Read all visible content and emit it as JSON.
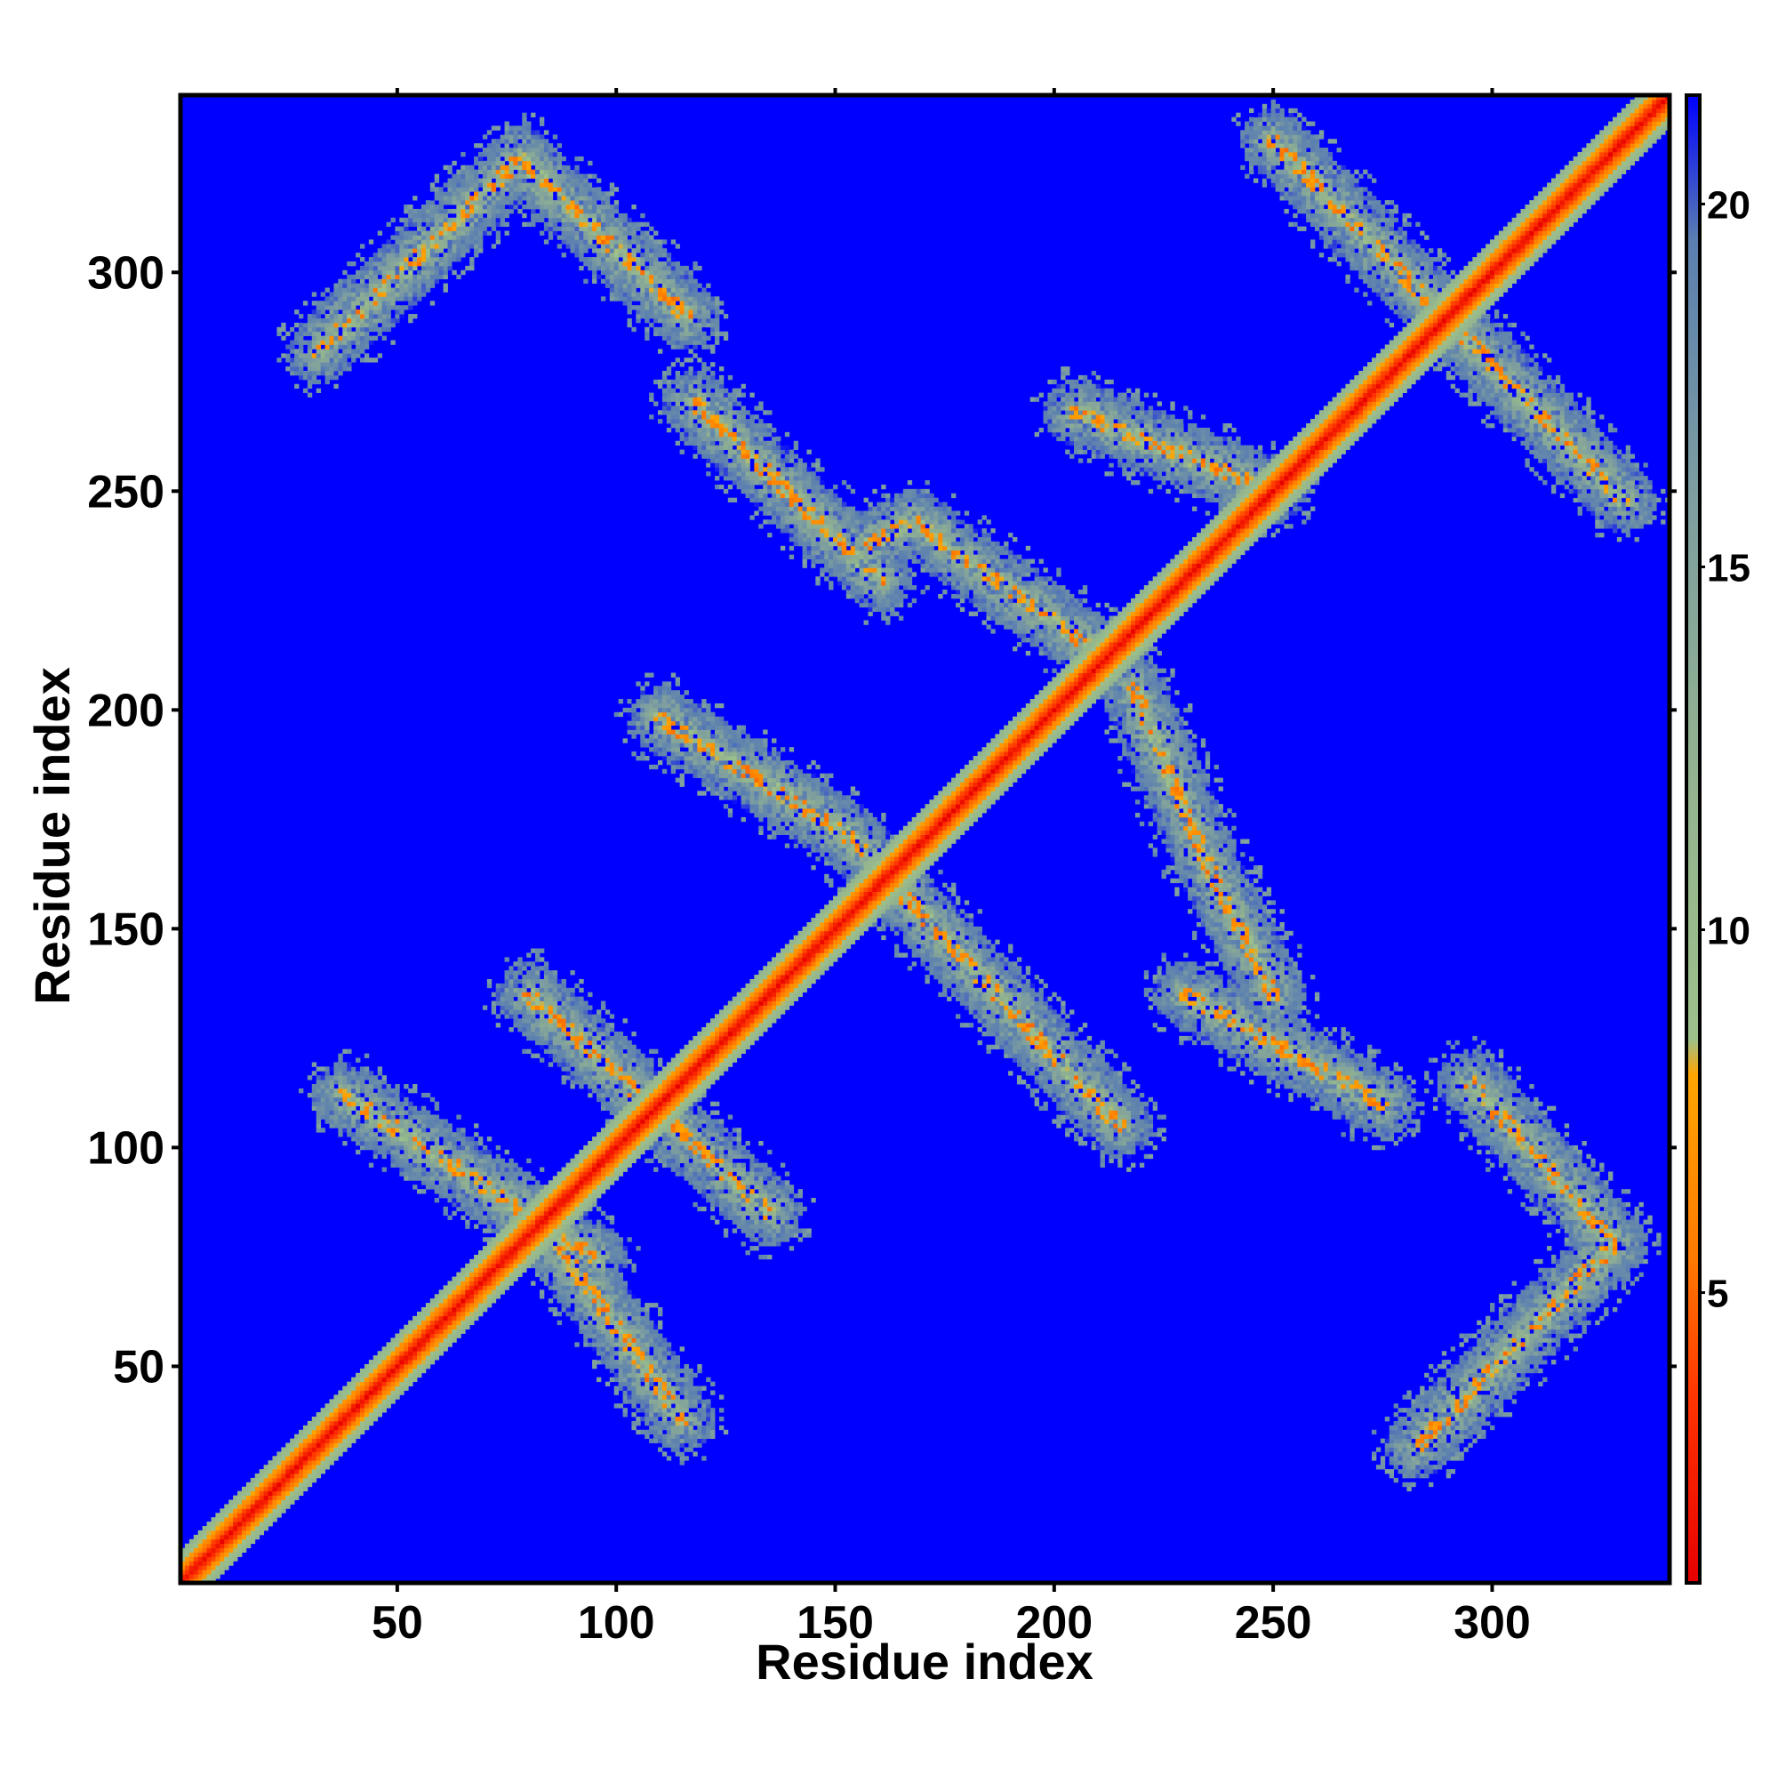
{
  "chart_data": {
    "type": "heatmap",
    "title": "",
    "xlabel": "Residue index",
    "ylabel": "Residue index",
    "x_range": [
      1,
      340
    ],
    "y_range": [
      1,
      340
    ],
    "x_ticks": [
      50,
      100,
      150,
      200,
      250,
      300
    ],
    "y_ticks": [
      50,
      100,
      150,
      200,
      250,
      300
    ],
    "colorbar": {
      "range": [
        1,
        21.5
      ],
      "ticks": [
        5,
        10,
        15,
        20
      ],
      "stops": [
        {
          "value": 1.0,
          "color": "#e60000"
        },
        {
          "value": 3.5,
          "color": "#ff3300"
        },
        {
          "value": 5.5,
          "color": "#ff7a00"
        },
        {
          "value": 8.0,
          "color": "#ffa500"
        },
        {
          "value": 8.5,
          "color": "#9cc08c"
        },
        {
          "value": 12.0,
          "color": "#93b48e"
        },
        {
          "value": 16.0,
          "color": "#7d9da0"
        },
        {
          "value": 19.5,
          "color": "#5a7fb0"
        },
        {
          "value": 21.5,
          "color": "#0000ff"
        }
      ]
    },
    "background_value": 21.5,
    "background_color": "#0000ff",
    "grid": false,
    "legend": "colorbar-right",
    "contact_bands": [
      {
        "from": [
          2,
          2
        ],
        "to": [
          340,
          340
        ]
      },
      {
        "from": [
          32,
          282
        ],
        "to": [
          78,
          326
        ]
      },
      {
        "from": [
          78,
          326
        ],
        "to": [
          116,
          290
        ]
      },
      {
        "from": [
          118,
          270
        ],
        "to": [
          160,
          230
        ]
      },
      {
        "from": [
          158,
          238
        ],
        "to": [
          168,
          243
        ]
      },
      {
        "from": [
          168,
          243
        ],
        "to": [
          210,
          213
        ]
      },
      {
        "from": [
          110,
          198
        ],
        "to": [
          152,
          172
        ]
      },
      {
        "from": [
          152,
          172
        ],
        "to": [
          215,
          105
        ]
      },
      {
        "from": [
          218,
          205
        ],
        "to": [
          235,
          165
        ]
      },
      {
        "from": [
          235,
          165
        ],
        "to": [
          250,
          135
        ]
      },
      {
        "from": [
          230,
          135
        ],
        "to": [
          275,
          110
        ]
      },
      {
        "from": [
          250,
          330
        ],
        "to": [
          330,
          248
        ]
      },
      {
        "from": [
          205,
          268
        ],
        "to": [
          250,
          250
        ]
      },
      {
        "from": [
          38,
          112
        ],
        "to": [
          95,
          75
        ]
      },
      {
        "from": [
          80,
          135
        ],
        "to": [
          135,
          85
        ]
      },
      {
        "from": [
          85,
          80
        ],
        "to": [
          115,
          38
        ]
      },
      {
        "from": [
          283,
          32
        ],
        "to": [
          328,
          78
        ]
      },
      {
        "from": [
          295,
          115
        ],
        "to": [
          328,
          78
        ]
      }
    ]
  }
}
